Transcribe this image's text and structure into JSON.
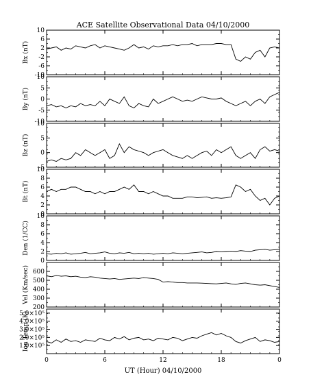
{
  "chart_data": {
    "type": "line",
    "title": "ACE Satellite Observational Data  04/10/2000",
    "xlabel": "UT (Hour)  04/10/2000",
    "xlim": [
      0,
      24
    ],
    "x_ticks": [
      "0",
      "6",
      "12",
      "18",
      "0"
    ],
    "panels": [
      {
        "name": "bx",
        "ylabel": "Bx (nT)",
        "ylim": [
          -10,
          10
        ],
        "y_ticks": [
          "-10",
          "-6",
          "-2",
          "2",
          "6",
          "10"
        ],
        "y_tick_values": [
          -10,
          -6,
          -2,
          2,
          6,
          10
        ],
        "x": [
          0,
          0.5,
          1,
          1.5,
          2,
          2.5,
          3,
          3.5,
          4,
          4.5,
          5,
          5.5,
          6,
          6.5,
          7,
          7.5,
          8,
          8.5,
          9,
          9.5,
          10,
          10.5,
          11,
          11.5,
          12,
          12.5,
          13,
          13.5,
          14,
          14.5,
          15,
          15.5,
          16,
          16.5,
          17,
          17.5,
          18,
          18.5,
          19,
          19.5,
          20,
          20.5,
          21,
          21.5,
          22,
          22.5,
          23,
          23.5,
          24
        ],
        "values": [
          1.5,
          2,
          2.5,
          1,
          2,
          1.5,
          3,
          2.5,
          2,
          3,
          3.5,
          2,
          3,
          2.5,
          2,
          1.5,
          1,
          2,
          3.5,
          2,
          2.5,
          1.5,
          3,
          2.5,
          3,
          3,
          3.5,
          3,
          3.5,
          3.5,
          4,
          3,
          3.5,
          3.5,
          3.5,
          4,
          4,
          3.5,
          3.5,
          -3,
          -4,
          -2,
          -3,
          0,
          1,
          -2,
          2,
          2.5,
          2
        ]
      },
      {
        "name": "by",
        "ylabel": "By (nT)",
        "ylim": [
          -10,
          10
        ],
        "y_ticks": [
          "-10",
          "-5",
          "0",
          "5",
          "10"
        ],
        "y_tick_values": [
          -10,
          -5,
          0,
          5,
          10
        ],
        "x": [
          0,
          0.5,
          1,
          1.5,
          2,
          2.5,
          3,
          3.5,
          4,
          4.5,
          5,
          5.5,
          6,
          6.5,
          7,
          7.5,
          8,
          8.5,
          9,
          9.5,
          10,
          10.5,
          11,
          11.5,
          12,
          12.5,
          13,
          13.5,
          14,
          14.5,
          15,
          15.5,
          16,
          16.5,
          17,
          17.5,
          18,
          18.5,
          19,
          19.5,
          20,
          20.5,
          21,
          21.5,
          22,
          22.5,
          23,
          23.5,
          24
        ],
        "values": [
          -3,
          -2.5,
          -3.5,
          -3,
          -4,
          -3,
          -3.5,
          -2,
          -3,
          -2.5,
          -3,
          -1,
          -3,
          0,
          -1,
          -2,
          1,
          -3,
          -4,
          -2,
          -3,
          -3.5,
          0,
          -2,
          -1,
          0,
          1,
          0,
          -1,
          -0.5,
          -1,
          0,
          1,
          0.5,
          0,
          0,
          0.5,
          -1,
          -2,
          -3,
          -2,
          -1,
          -3,
          -1,
          0,
          -2,
          1,
          2,
          3
        ]
      },
      {
        "name": "bz",
        "ylabel": "Bz (nT)",
        "ylim": [
          -5,
          10
        ],
        "y_ticks": [
          "-5",
          "0",
          "5",
          "10"
        ],
        "y_tick_values": [
          -5,
          0,
          5,
          10
        ],
        "x": [
          0,
          0.5,
          1,
          1.5,
          2,
          2.5,
          3,
          3.5,
          4,
          4.5,
          5,
          5.5,
          6,
          6.5,
          7,
          7.5,
          8,
          8.5,
          9,
          9.5,
          10,
          10.5,
          11,
          11.5,
          12,
          12.5,
          13,
          13.5,
          14,
          14.5,
          15,
          15.5,
          16,
          16.5,
          17,
          17.5,
          18,
          18.5,
          19,
          19.5,
          20,
          20.5,
          21,
          21.5,
          22,
          22.5,
          23,
          23.5,
          24
        ],
        "values": [
          -3,
          -2.5,
          -3,
          -2,
          -2.5,
          -2,
          0,
          -1,
          1,
          0,
          -1,
          0,
          1,
          -2,
          -1,
          3,
          0,
          2,
          1,
          0.5,
          0,
          -1,
          0,
          0.5,
          1,
          0,
          -1,
          -1.5,
          -2,
          -1,
          -2,
          -1,
          0,
          0.5,
          -1,
          1,
          0,
          1,
          2,
          -1,
          -2,
          -1,
          0,
          -2,
          1,
          2,
          0.5,
          1,
          0.5
        ]
      },
      {
        "name": "bt",
        "ylabel": "Bt (nT)",
        "ylim": [
          0,
          10
        ],
        "y_ticks": [
          "0",
          "2",
          "4",
          "6",
          "8",
          "10"
        ],
        "y_tick_values": [
          0,
          2,
          4,
          6,
          8,
          10
        ],
        "x": [
          0,
          0.5,
          1,
          1.5,
          2,
          2.5,
          3,
          3.5,
          4,
          4.5,
          5,
          5.5,
          6,
          6.5,
          7,
          7.5,
          8,
          8.5,
          9,
          9.5,
          10,
          10.5,
          11,
          11.5,
          12,
          12.5,
          13,
          13.5,
          14,
          14.5,
          15,
          15.5,
          16,
          16.5,
          17,
          17.5,
          18,
          18.5,
          19,
          19.5,
          20,
          20.5,
          21,
          21.5,
          22,
          22.5,
          23,
          23.5,
          24
        ],
        "values": [
          5,
          5.5,
          5,
          5.5,
          5.5,
          6,
          6,
          5.5,
          5,
          5,
          4.5,
          5,
          4.5,
          5,
          5,
          5.5,
          6,
          5.5,
          6.5,
          5,
          5,
          4.5,
          5,
          4.5,
          4,
          4,
          3.5,
          3.5,
          3.5,
          3.8,
          3.8,
          3.6,
          3.7,
          3.8,
          3.5,
          3.6,
          3.5,
          3.6,
          3.8,
          6.5,
          6,
          5,
          5.5,
          4,
          3,
          3.5,
          2,
          3.5,
          4
        ]
      },
      {
        "name": "den",
        "ylabel": "Den (1/CC)",
        "ylim": [
          0,
          10
        ],
        "y_ticks": [
          "0",
          "2",
          "4",
          "6",
          "8",
          "10"
        ],
        "y_tick_values": [
          0,
          2,
          4,
          6,
          8,
          10
        ],
        "x": [
          0,
          0.5,
          1,
          1.5,
          2,
          2.5,
          3,
          3.5,
          4,
          4.5,
          5,
          5.5,
          6,
          6.5,
          7,
          7.5,
          8,
          8.5,
          9,
          9.5,
          10,
          10.5,
          11,
          11.5,
          12,
          12.5,
          13,
          13.5,
          14,
          14.5,
          15,
          15.5,
          16,
          16.5,
          17,
          17.5,
          18,
          18.5,
          19,
          19.5,
          20,
          20.5,
          21,
          21.5,
          22,
          22.5,
          23,
          23.5,
          24
        ],
        "values": [
          1.5,
          1.4,
          1.6,
          1.5,
          1.7,
          1.4,
          1.5,
          1.6,
          1.8,
          1.5,
          1.6,
          1.7,
          1.9,
          1.6,
          1.5,
          1.7,
          1.6,
          1.8,
          1.5,
          1.6,
          1.5,
          1.6,
          1.4,
          1.5,
          1.6,
          1.5,
          1.7,
          1.6,
          1.5,
          1.6,
          1.7,
          1.8,
          1.9,
          1.7,
          1.8,
          2,
          1.9,
          2,
          2.1,
          2,
          2.2,
          2.1,
          2,
          2.3,
          2.4,
          2.5,
          2.3,
          2.4,
          2.5
        ]
      },
      {
        "name": "vel",
        "ylabel": "Vel (Km/sec)",
        "ylim": [
          200,
          700
        ],
        "y_ticks": [
          "200",
          "300",
          "400",
          "500",
          "600"
        ],
        "y_tick_values": [
          200,
          300,
          400,
          500,
          600
        ],
        "x": [
          0,
          0.5,
          1,
          1.5,
          2,
          2.5,
          3,
          3.5,
          4,
          4.5,
          5,
          5.5,
          6,
          6.5,
          7,
          7.5,
          8,
          8.5,
          9,
          9.5,
          10,
          10.5,
          11,
          11.5,
          12,
          12.5,
          13,
          13.5,
          14,
          14.5,
          15,
          15.5,
          16,
          16.5,
          17,
          17.5,
          18,
          18.5,
          19,
          19.5,
          20,
          20.5,
          21,
          21.5,
          22,
          22.5,
          23,
          23.5,
          24
        ],
        "values": [
          550,
          540,
          555,
          545,
          550,
          540,
          545,
          535,
          530,
          540,
          535,
          525,
          520,
          515,
          520,
          510,
          515,
          520,
          525,
          520,
          530,
          525,
          520,
          510,
          480,
          485,
          480,
          475,
          475,
          470,
          470,
          470,
          468,
          465,
          462,
          460,
          465,
          470,
          460,
          455,
          465,
          470,
          460,
          450,
          445,
          450,
          440,
          430,
          420
        ]
      },
      {
        "name": "temp",
        "ylabel": "Ion Temp (K)",
        "ylim": [
          0,
          550000
        ],
        "y_ticks": [
          "1.0×10⁵",
          "2.0×10⁵",
          "3.0×10⁵",
          "4.0×10⁵",
          "5.0×10⁵"
        ],
        "y_tick_values": [
          100000,
          200000,
          300000,
          400000,
          500000
        ],
        "x": [
          0,
          0.5,
          1,
          1.5,
          2,
          2.5,
          3,
          3.5,
          4,
          4.5,
          5,
          5.5,
          6,
          6.5,
          7,
          7.5,
          8,
          8.5,
          9,
          9.5,
          10,
          10.5,
          11,
          11.5,
          12,
          12.5,
          13,
          13.5,
          14,
          14.5,
          15,
          15.5,
          16,
          16.5,
          17,
          17.5,
          18,
          18.5,
          19,
          19.5,
          20,
          20.5,
          21,
          21.5,
          22,
          22.5,
          23,
          23.5,
          24
        ],
        "values": [
          150000,
          130000,
          170000,
          140000,
          180000,
          150000,
          160000,
          140000,
          170000,
          160000,
          150000,
          190000,
          170000,
          160000,
          200000,
          180000,
          210000,
          170000,
          190000,
          200000,
          170000,
          180000,
          160000,
          190000,
          180000,
          170000,
          200000,
          190000,
          160000,
          180000,
          200000,
          190000,
          220000,
          240000,
          260000,
          230000,
          250000,
          220000,
          200000,
          150000,
          130000,
          160000,
          180000,
          200000,
          150000,
          170000,
          160000,
          140000,
          150000
        ]
      }
    ]
  }
}
